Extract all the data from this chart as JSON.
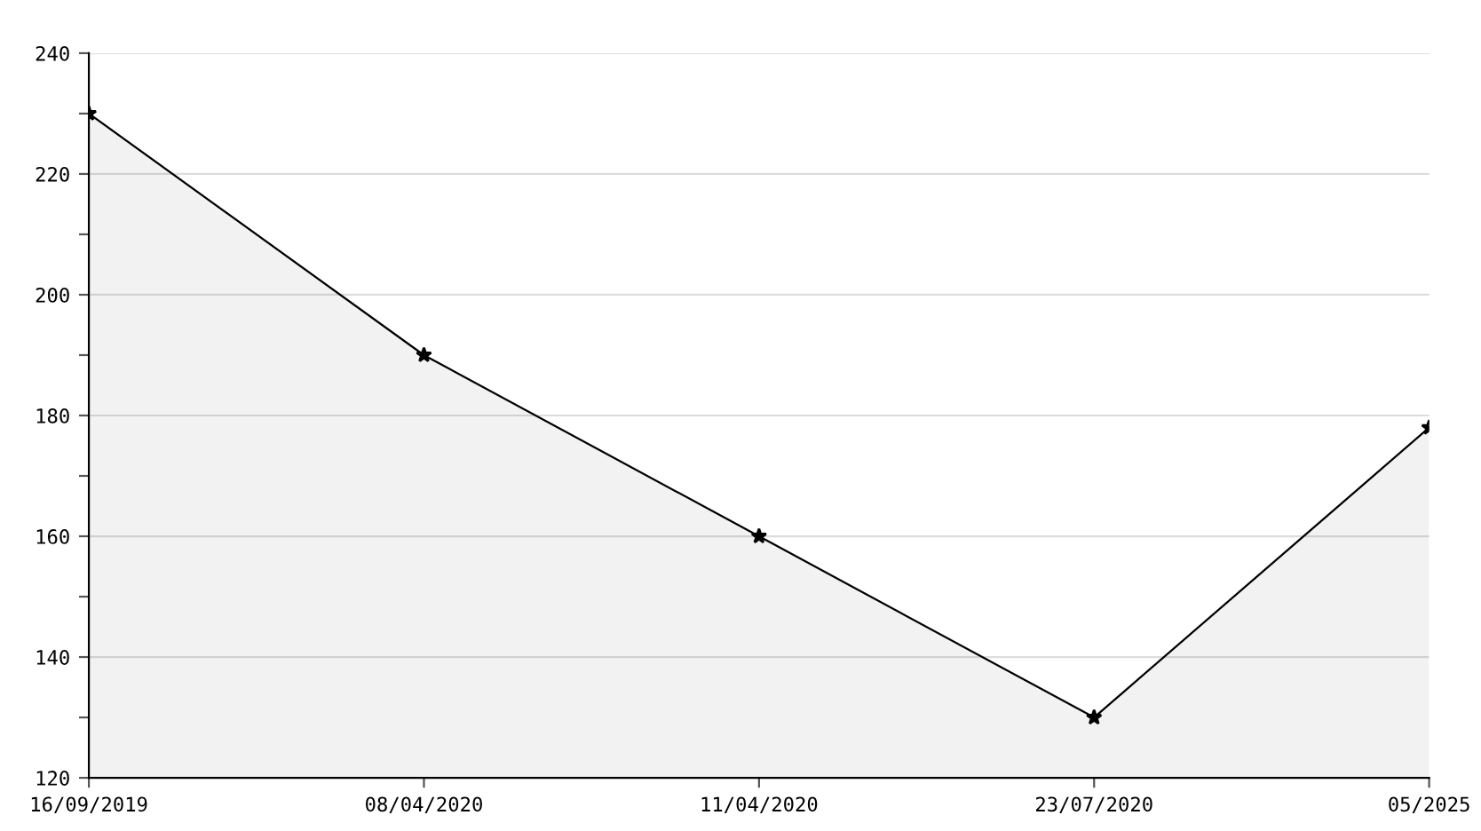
{
  "chart_data": {
    "type": "area",
    "categories": [
      "16/09/2019",
      "08/04/2020",
      "11/04/2020",
      "23/07/2020",
      "05/2025"
    ],
    "series": [
      {
        "color": "#000000",
        "values": [
          230,
          190,
          160,
          130,
          178
        ]
      }
    ],
    "ylim": [
      120,
      240
    ],
    "yticks": [
      120,
      {
        "value": 130,
        "label": null
      },
      140,
      {
        "value": 150,
        "label": null
      },
      160,
      {
        "value": 170,
        "label": null
      },
      180,
      {
        "value": 190,
        "label": null
      },
      200,
      {
        "value": 210,
        "label": null
      },
      220,
      {
        "value": 230,
        "label": null
      },
      240
    ],
    "grid": "y",
    "marker": "star",
    "line_style": "solid",
    "legend": false
  }
}
